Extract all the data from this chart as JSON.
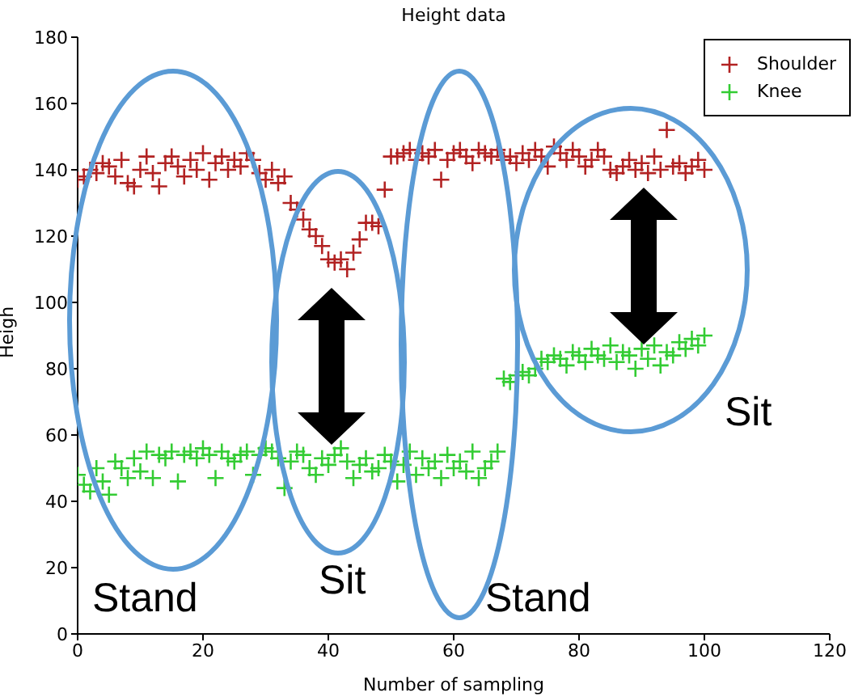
{
  "chart_data": {
    "type": "scatter",
    "title": "Height data",
    "xlabel": "Number of sampling",
    "ylabel": "Heigh",
    "xlim": [
      0,
      120
    ],
    "xticks": [
      0,
      20,
      40,
      60,
      80,
      100,
      120
    ],
    "ylim": [
      0,
      180
    ],
    "yticks": [
      0,
      20,
      40,
      60,
      80,
      100,
      120,
      140,
      160,
      180
    ],
    "marker": "cross",
    "legend": "top right",
    "grid": false,
    "annotations": [
      "Stand",
      "Sit",
      "Stand",
      "Sit"
    ],
    "series": [
      {
        "name": "Shoulder",
        "color": "#b22222",
        "x": [
          0,
          1,
          2,
          3,
          4,
          5,
          6,
          7,
          8,
          9,
          10,
          11,
          12,
          13,
          14,
          15,
          16,
          17,
          18,
          19,
          20,
          21,
          22,
          23,
          24,
          25,
          26,
          27,
          28,
          29,
          30,
          31,
          32,
          33,
          34,
          35,
          36,
          37,
          38,
          39,
          40,
          41,
          42,
          43,
          44,
          45,
          46,
          47,
          48,
          49,
          50,
          51,
          52,
          53,
          54,
          55,
          56,
          57,
          58,
          59,
          60,
          61,
          62,
          63,
          64,
          65,
          66,
          67,
          68,
          69,
          70,
          71,
          72,
          73,
          74,
          75,
          76,
          77,
          78,
          79,
          80,
          81,
          82,
          83,
          84,
          85,
          86,
          87,
          88,
          89,
          90,
          91,
          92,
          93,
          94,
          95,
          96,
          97,
          98,
          99,
          100
        ],
        "values": [
          137,
          138,
          140,
          139,
          142,
          141,
          138,
          143,
          136,
          135,
          140,
          144,
          139,
          135,
          142,
          144,
          141,
          138,
          143,
          140,
          145,
          137,
          142,
          144,
          140,
          143,
          141,
          145,
          143,
          139,
          137,
          140,
          136,
          138,
          130,
          128,
          125,
          122,
          120,
          117,
          113,
          112,
          113,
          110,
          115,
          119,
          124,
          124,
          123,
          134,
          144,
          144,
          145,
          146,
          143,
          145,
          144,
          146,
          137,
          143,
          145,
          146,
          144,
          142,
          146,
          145,
          144,
          146,
          143,
          144,
          142,
          145,
          143,
          146,
          144,
          141,
          147,
          145,
          143,
          146,
          144,
          141,
          143,
          146,
          144,
          140,
          139,
          141,
          143,
          140,
          142,
          139,
          144,
          140,
          152,
          141,
          142,
          139,
          141,
          143,
          140
        ]
      },
      {
        "name": "Knee",
        "color": "#33cc33",
        "x": [
          0,
          1,
          2,
          3,
          4,
          5,
          6,
          7,
          8,
          9,
          10,
          11,
          12,
          13,
          14,
          15,
          16,
          17,
          18,
          19,
          20,
          21,
          22,
          23,
          24,
          25,
          26,
          27,
          28,
          29,
          30,
          31,
          32,
          33,
          34,
          35,
          36,
          37,
          38,
          39,
          40,
          41,
          42,
          43,
          44,
          45,
          46,
          47,
          48,
          49,
          50,
          51,
          52,
          53,
          54,
          55,
          56,
          57,
          58,
          59,
          60,
          61,
          62,
          63,
          64,
          65,
          66,
          67,
          68,
          69,
          70,
          71,
          72,
          73,
          74,
          75,
          76,
          77,
          78,
          79,
          80,
          81,
          82,
          83,
          84,
          85,
          86,
          87,
          88,
          89,
          90,
          91,
          92,
          93,
          94,
          95,
          96,
          97,
          98,
          99,
          100
        ],
        "values": [
          48,
          45,
          43,
          50,
          46,
          42,
          52,
          50,
          47,
          53,
          49,
          55,
          47,
          54,
          53,
          55,
          46,
          54,
          55,
          53,
          56,
          54,
          47,
          55,
          53,
          52,
          54,
          55,
          48,
          54,
          56,
          55,
          53,
          44,
          52,
          55,
          54,
          50,
          48,
          53,
          51,
          54,
          56,
          52,
          47,
          51,
          53,
          49,
          50,
          54,
          52,
          46,
          51,
          55,
          48,
          53,
          50,
          52,
          47,
          54,
          50,
          52,
          49,
          55,
          47,
          50,
          52,
          55,
          77,
          76,
          78,
          79,
          78,
          80,
          83,
          82,
          84,
          83,
          81,
          85,
          84,
          82,
          86,
          84,
          83,
          87,
          82,
          85,
          84,
          80,
          86,
          83,
          87,
          81,
          85,
          84,
          88,
          86,
          89,
          87,
          90
        ]
      }
    ]
  }
}
